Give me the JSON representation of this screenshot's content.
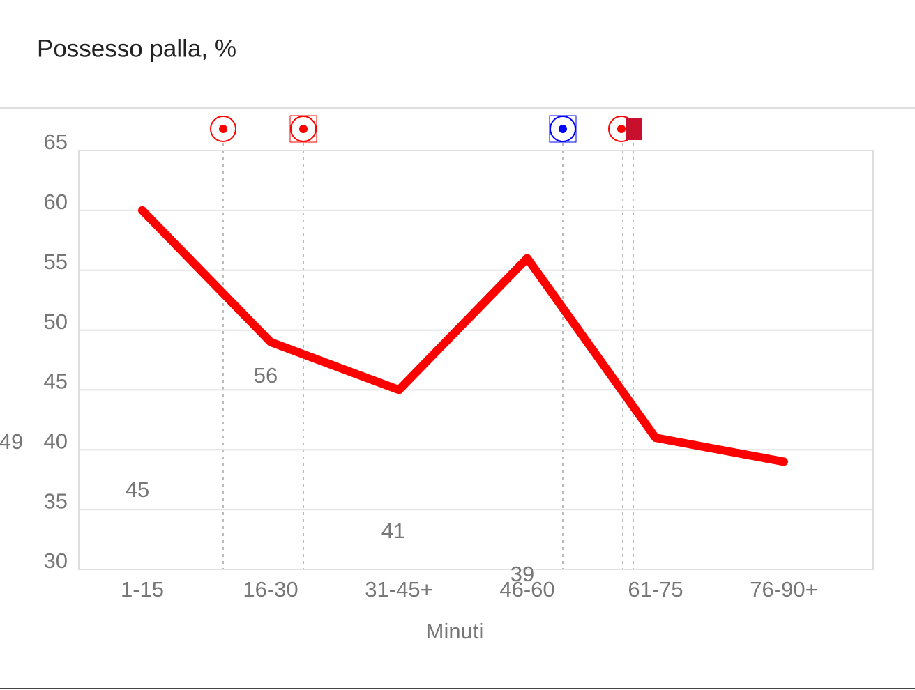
{
  "chart_data": {
    "type": "line",
    "title": "Possesso palla, %",
    "x_label": "Minuti",
    "categories": [
      "1-15",
      "16-30",
      "31-45+",
      "46-60",
      "61-75",
      "76-90+"
    ],
    "values": [
      60,
      49,
      45,
      56,
      41,
      39
    ],
    "color": "#ff0000",
    "ylim": [
      30,
      65
    ],
    "yticks": [
      30,
      35,
      40,
      45,
      50,
      55,
      60,
      65
    ],
    "grid": true
  }
}
